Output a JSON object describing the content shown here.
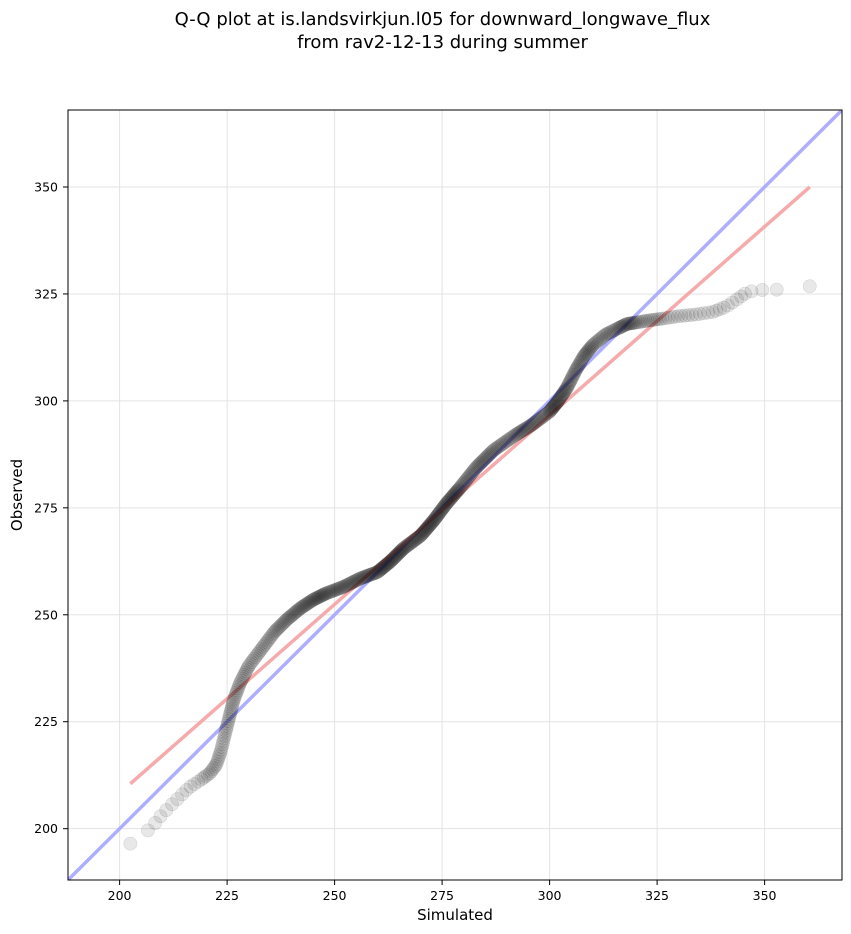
{
  "chart_data": {
    "type": "scatter",
    "title": "Q-Q plot at is.landsvirkjun.l05 for downward_longwave_flux",
    "subtitle": "from rav2-12-13 during summer",
    "xlabel": "Simulated",
    "ylabel": "Observed",
    "xlim": [
      188,
      368
    ],
    "ylim": [
      188,
      368
    ],
    "xticks": [
      200,
      225,
      250,
      275,
      300,
      325,
      350
    ],
    "yticks": [
      200,
      225,
      250,
      275,
      300,
      325,
      350
    ],
    "grid": true,
    "identity_line": {
      "name": "1:1 line",
      "color": "#aaaaff",
      "x": [
        188,
        368
      ],
      "y": [
        188,
        368
      ]
    },
    "fit_line": {
      "name": "linear fit",
      "color": "#f4a6a6",
      "x": [
        202.5,
        360.5
      ],
      "y": [
        210.5,
        350
      ]
    },
    "quantile_anchors": {
      "simulated": [
        202.5,
        204,
        206,
        208,
        210,
        213,
        216,
        219,
        221,
        222.5,
        223.5,
        224.5,
        225.5,
        226.5,
        228,
        230,
        233,
        236,
        239,
        242,
        245,
        248,
        252,
        256,
        260,
        263,
        266,
        270,
        273,
        276,
        279,
        283,
        287,
        292,
        296,
        300,
        302,
        304,
        306,
        308,
        310,
        313,
        316,
        318,
        320,
        323,
        326,
        330,
        334,
        338,
        341,
        344,
        346,
        350,
        354,
        358,
        360.5
      ],
      "observed": [
        196.5,
        198,
        199,
        201,
        203.5,
        206.5,
        209.5,
        211.5,
        213,
        215,
        218,
        222,
        226,
        230,
        234,
        238,
        242,
        246,
        249,
        251.5,
        253.5,
        255,
        256.5,
        258.5,
        260,
        262.5,
        265.5,
        268.5,
        272,
        276,
        279.5,
        284.5,
        288.5,
        292,
        294.5,
        297.5,
        300,
        303,
        307,
        310.5,
        313,
        315.5,
        317,
        318,
        318.3,
        318.8,
        319.2,
        319.8,
        320.2,
        320.8,
        322,
        324,
        325.5,
        326,
        326,
        326.3,
        326.8
      ]
    }
  }
}
